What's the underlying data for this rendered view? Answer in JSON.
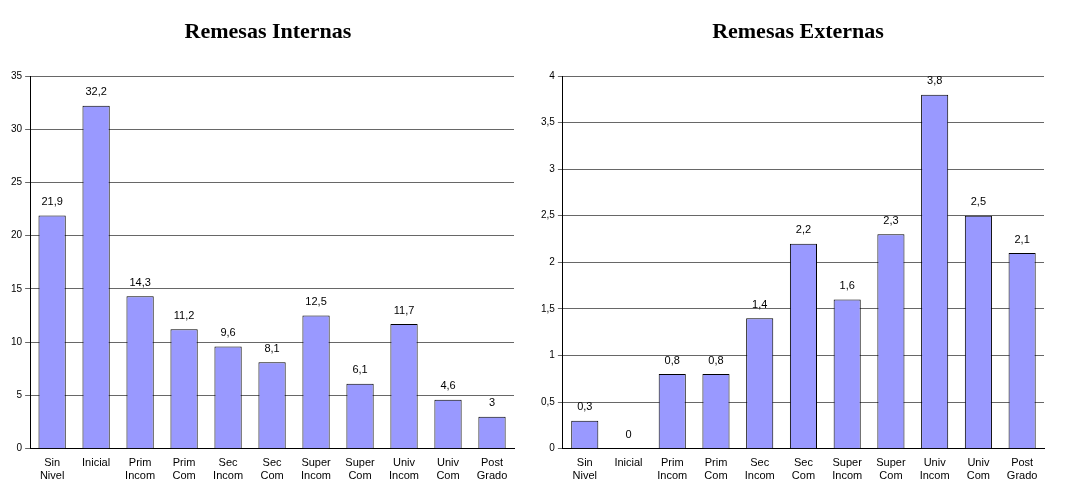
{
  "chart_data": [
    {
      "type": "bar",
      "title": "Remesas Internas",
      "categories": [
        "Sin Nivel",
        "Inicial",
        "Prim Incom",
        "Prim Com",
        "Sec Incom",
        "Sec Com",
        "Super Incom",
        "Super Com",
        "Univ Incom",
        "Univ Com",
        "Post Grado"
      ],
      "values": [
        21.9,
        32.2,
        14.3,
        11.2,
        9.6,
        8.1,
        12.5,
        6.1,
        11.7,
        4.6,
        3
      ],
      "value_labels": [
        "21,9",
        "32,2",
        "14,3",
        "11,2",
        "9,6",
        "8,1",
        "12,5",
        "6,1",
        "11,7",
        "4,6",
        "3"
      ],
      "color": "#9999ff",
      "ylim": [
        0,
        35
      ],
      "yticks": [
        0,
        5,
        10,
        15,
        20,
        25,
        30,
        35
      ],
      "grid": "y",
      "legend": false
    },
    {
      "type": "bar",
      "title": "Remesas Externas",
      "categories": [
        "Sin Nivel",
        "Inicial",
        "Prim Incom",
        "Prim Com",
        "Sec Incom",
        "Sec Com",
        "Super Incom",
        "Super Com",
        "Univ Incom",
        "Univ Com",
        "Post Grado"
      ],
      "values": [
        0.3,
        0,
        0.8,
        0.8,
        1.4,
        2.2,
        1.6,
        2.3,
        3.8,
        2.5,
        2.1
      ],
      "value_labels": [
        "0,3",
        "0",
        "0,8",
        "0,8",
        "1,4",
        "2,2",
        "1,6",
        "2,3",
        "3,8",
        "2,5",
        "2,1"
      ],
      "color": "#9999ff",
      "ylim": [
        0,
        4
      ],
      "yticks": [
        0,
        {
          "value": 0.5,
          "label": "0,5"
        },
        1,
        {
          "value": 1.5,
          "label": "1,5"
        },
        2,
        {
          "value": 2.5,
          "label": "2,5"
        },
        3,
        {
          "value": 3.5,
          "label": "3,5"
        },
        4
      ],
      "grid": "y",
      "legend": false
    }
  ]
}
